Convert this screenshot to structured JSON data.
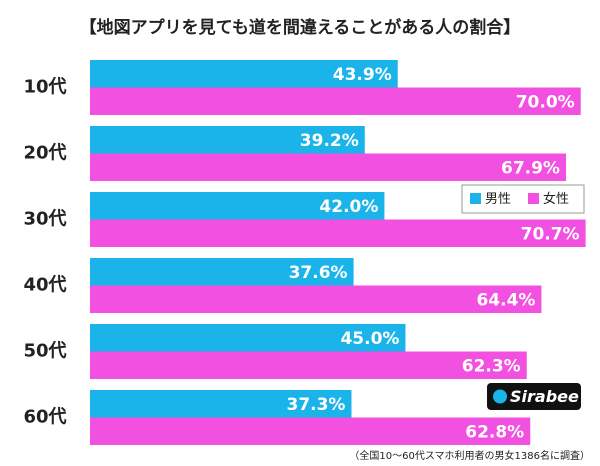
{
  "chart_data": {
    "type": "bar",
    "orientation": "horizontal",
    "title": "【地図アプリを見ても道を間違えることがある人の割合】",
    "categories": [
      "10代",
      "20代",
      "30代",
      "40代",
      "50代",
      "60代"
    ],
    "series": [
      {
        "name": "男性",
        "color": "#1ab3ea",
        "values": [
          43.9,
          39.2,
          42.0,
          37.6,
          45.0,
          37.3
        ],
        "value_labels": [
          "43.9%",
          "39.2%",
          "42.0%",
          "37.6%",
          "45.0%",
          "37.3%"
        ]
      },
      {
        "name": "女性",
        "color": "#f150e0",
        "values": [
          70.0,
          67.9,
          70.7,
          64.4,
          62.3,
          62.8
        ],
        "value_labels": [
          "70.0%",
          "67.9%",
          "70.7%",
          "64.4%",
          "62.3%",
          "62.8%"
        ]
      }
    ],
    "legend": "right",
    "note": "（全国10〜60代スマホ利用者の男女1386名に調査）",
    "logo": "Sirabee"
  }
}
